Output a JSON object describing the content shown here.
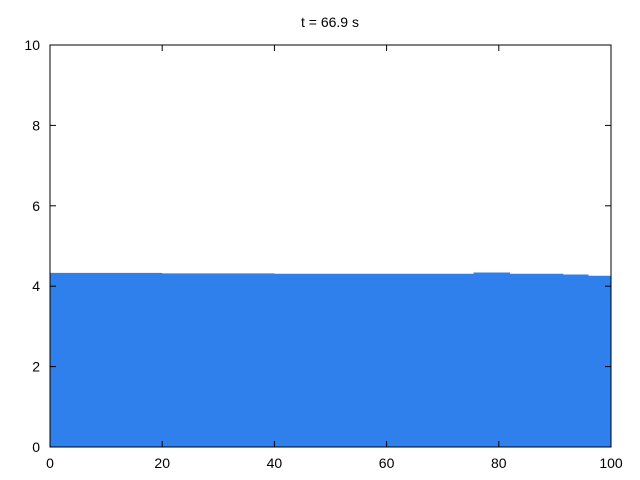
{
  "chart_data": {
    "type": "area",
    "title": "t = 66.9 s",
    "xlabel": "",
    "ylabel": "",
    "xlim": [
      0,
      100
    ],
    "ylim": [
      0,
      10
    ],
    "x_ticks": [
      0,
      20,
      40,
      60,
      80,
      100
    ],
    "y_ticks": [
      0,
      2,
      4,
      6,
      8,
      10
    ],
    "x_tick_labels": [
      "0",
      "20",
      "40",
      "60",
      "80",
      "100"
    ],
    "y_tick_labels": [
      "0",
      "2",
      "4",
      "6",
      "8",
      "10"
    ],
    "grid": false,
    "fill_color": "#2f80ed",
    "step_x": [
      0,
      10,
      20,
      30,
      40,
      50,
      60,
      70,
      75.5,
      82,
      91.5,
      96,
      100
    ],
    "step_y": [
      4.33,
      4.33,
      4.32,
      4.32,
      4.31,
      4.31,
      4.31,
      4.31,
      4.34,
      4.31,
      4.29,
      4.26,
      4.26
    ]
  }
}
